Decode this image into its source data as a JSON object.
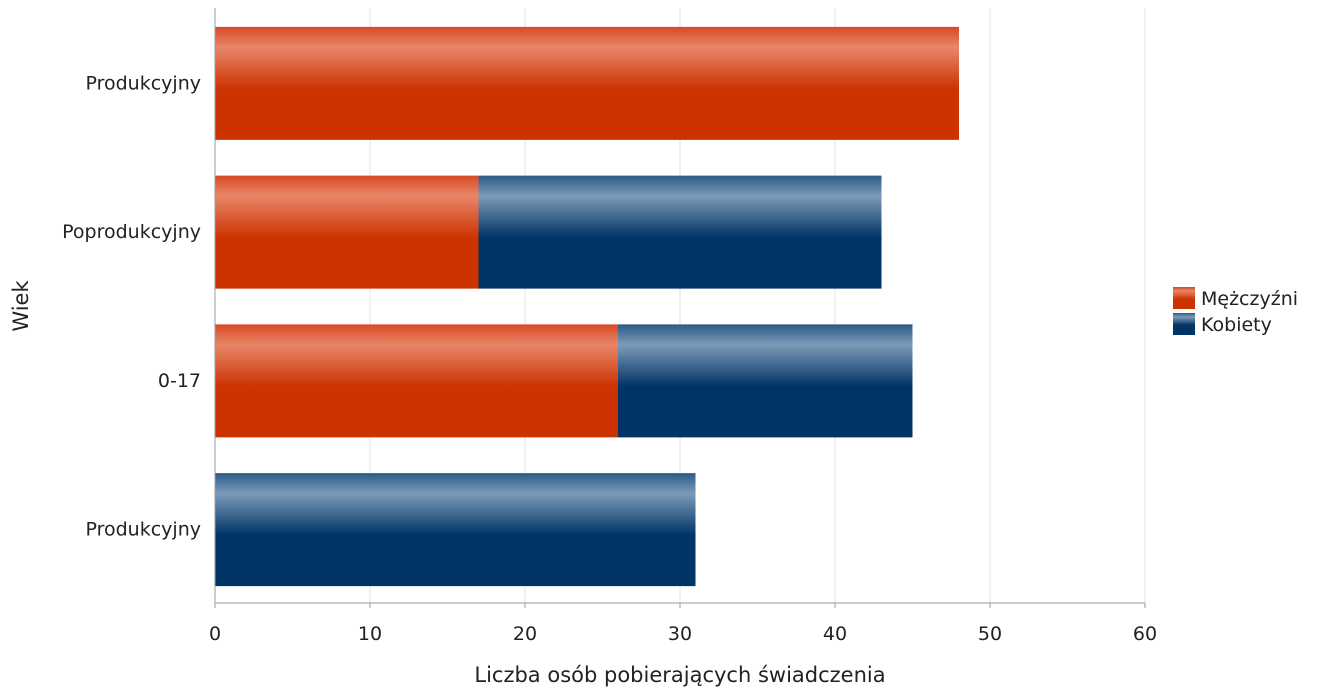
{
  "chart_data": {
    "type": "bar",
    "orientation": "horizontal",
    "stacked": true,
    "categories": [
      "Produkcyjny",
      "Poprodukcyjny",
      "0-17",
      "Produkcyjny"
    ],
    "series": [
      {
        "name": "Mężczyźni",
        "color": "#d03a10",
        "values": [
          48,
          17,
          26,
          0
        ]
      },
      {
        "name": "Kobiety",
        "color": "#073a6b",
        "values": [
          0,
          26,
          19,
          31
        ]
      }
    ],
    "xlabel": "Liczba osób pobierających świadczenia",
    "ylabel": "Wiek",
    "xlim": [
      0,
      60
    ],
    "xticks": [
      0,
      10,
      20,
      30,
      40,
      50,
      60
    ],
    "grid": "vertical",
    "legend": "right"
  }
}
